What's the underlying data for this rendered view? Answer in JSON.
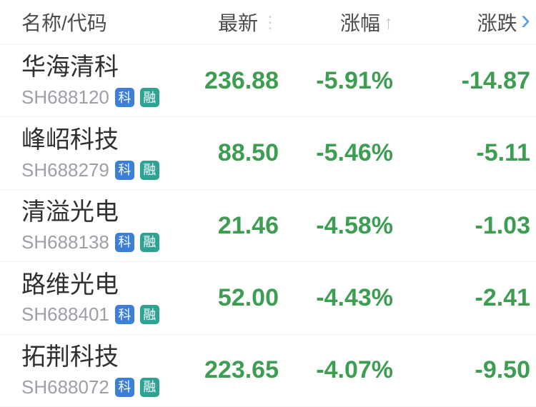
{
  "header": {
    "name_col": "名称/代码",
    "last_col": "最新",
    "pct_col": "涨幅",
    "chg_col": "涨跌",
    "last_sort_icon": "⋮",
    "pct_sort_icon": "↑",
    "chg_more_icon": "›"
  },
  "colors": {
    "down_green": "#3d9e52",
    "badge_blue": "#3b7fd6",
    "badge_teal": "#2ea393",
    "chevron_blue": "#5d9fe2",
    "name_text": "#2f2f2f",
    "code_text": "#9ca0a6",
    "header_text": "#4c4c4c",
    "separator": "#f0f0f1"
  },
  "rows": [
    {
      "name": "华海清科",
      "code": "SH688120",
      "badges": [
        "科",
        "融"
      ],
      "last": "236.88",
      "pct": "-5.91%",
      "chg": "-14.87"
    },
    {
      "name": "峰岹科技",
      "code": "SH688279",
      "badges": [
        "科",
        "融"
      ],
      "last": "88.50",
      "pct": "-5.46%",
      "chg": "-5.11"
    },
    {
      "name": "清溢光电",
      "code": "SH688138",
      "badges": [
        "科",
        "融"
      ],
      "last": "21.46",
      "pct": "-4.58%",
      "chg": "-1.03"
    },
    {
      "name": "路维光电",
      "code": "SH688401",
      "badges": [
        "科",
        "融"
      ],
      "last": "52.00",
      "pct": "-4.43%",
      "chg": "-2.41"
    },
    {
      "name": "拓荆科技",
      "code": "SH688072",
      "badges": [
        "科",
        "融"
      ],
      "last": "223.65",
      "pct": "-4.07%",
      "chg": "-9.50"
    }
  ]
}
